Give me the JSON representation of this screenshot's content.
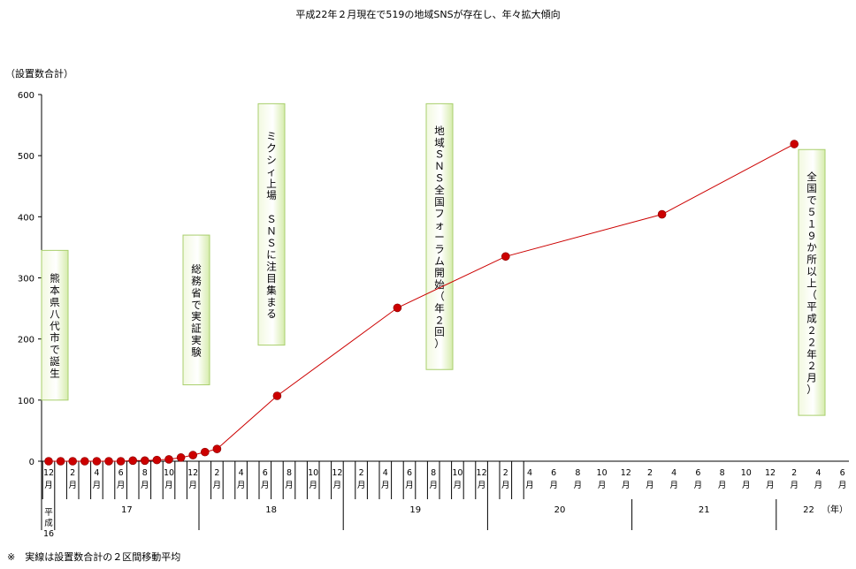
{
  "chart_data": {
    "type": "line",
    "title": "平成22年２月現在で519の地域SNSが存在し、年々拡大傾向",
    "ylabel": "（設置数合計）",
    "ylim": [
      0,
      600
    ],
    "yticks": [
      0,
      100,
      200,
      300,
      400,
      500,
      600
    ],
    "grid": false,
    "series_color": "#cc0000",
    "x_unit": "（年）",
    "era_label": "平成",
    "month_suffix": "月",
    "months": [
      "12",
      "2",
      "4",
      "6",
      "8",
      "10",
      "12",
      "2",
      "4",
      "6",
      "8",
      "10",
      "12",
      "2",
      "4",
      "6",
      "8",
      "10",
      "12",
      "2",
      "4",
      "6",
      "8",
      "10",
      "12",
      "2",
      "4",
      "6",
      "8",
      "10",
      "12",
      "2",
      "4",
      "6",
      "8",
      "10",
      "12",
      "2",
      "4",
      "6"
    ],
    "years": [
      {
        "label": "16",
        "start": 0,
        "end": 0.5
      },
      {
        "label": "17",
        "start": 0.5,
        "end": 6.5
      },
      {
        "label": "18",
        "start": 6.5,
        "end": 12.5
      },
      {
        "label": "19",
        "start": 12.5,
        "end": 18.5
      },
      {
        "label": "20",
        "start": 18.5,
        "end": 24.5
      },
      {
        "label": "21",
        "start": 24.5,
        "end": 30.5
      },
      {
        "label": "22",
        "start": 30.5,
        "end": 33.2
      }
    ],
    "points": [
      {
        "x": "平成16年12月",
        "y": 0
      },
      {
        "x": "平成17年1月",
        "y": 0
      },
      {
        "x": "平成17年2月",
        "y": 0
      },
      {
        "x": "平成17年3月",
        "y": 0
      },
      {
        "x": "平成17年4月",
        "y": 0
      },
      {
        "x": "平成17年5月",
        "y": 0
      },
      {
        "x": "平成17年6月",
        "y": 0
      },
      {
        "x": "平成17年7月",
        "y": 1
      },
      {
        "x": "平成17年8月",
        "y": 1
      },
      {
        "x": "平成17年9月",
        "y": 2
      },
      {
        "x": "平成17年10月",
        "y": 3
      },
      {
        "x": "平成17年11月",
        "y": 6
      },
      {
        "x": "平成17年12月",
        "y": 10
      },
      {
        "x": "平成18年1月",
        "y": 15
      },
      {
        "x": "平成18年2月",
        "y": 20
      },
      {
        "x": "平成18年7月",
        "y": 107
      },
      {
        "x": "平成19年5月",
        "y": 251
      },
      {
        "x": "平成20年2月",
        "y": 335
      },
      {
        "x": "平成21年3月",
        "y": 404
      },
      {
        "x": "平成22年2月",
        "y": 519
      }
    ],
    "annotations": [
      {
        "text": "熊本県八代市で誕生",
        "ymin": 100,
        "ymax": 345
      },
      {
        "text": "総務省で実証実験",
        "ymin": 125,
        "ymax": 370
      },
      {
        "text": "ミクシィ上場　ＳＮＳに注目集まる",
        "ymin": 190,
        "ymax": 585
      },
      {
        "text": "地域ＳＮＳ全国フォーラム開始（年２回）",
        "ymin": 150,
        "ymax": 585
      },
      {
        "text": "全国で５１９か所以上（平成２２年２月）",
        "ymin": 75,
        "ymax": 510
      }
    ]
  },
  "footnote": "※　実線は設置数合計の２区間移動平均"
}
